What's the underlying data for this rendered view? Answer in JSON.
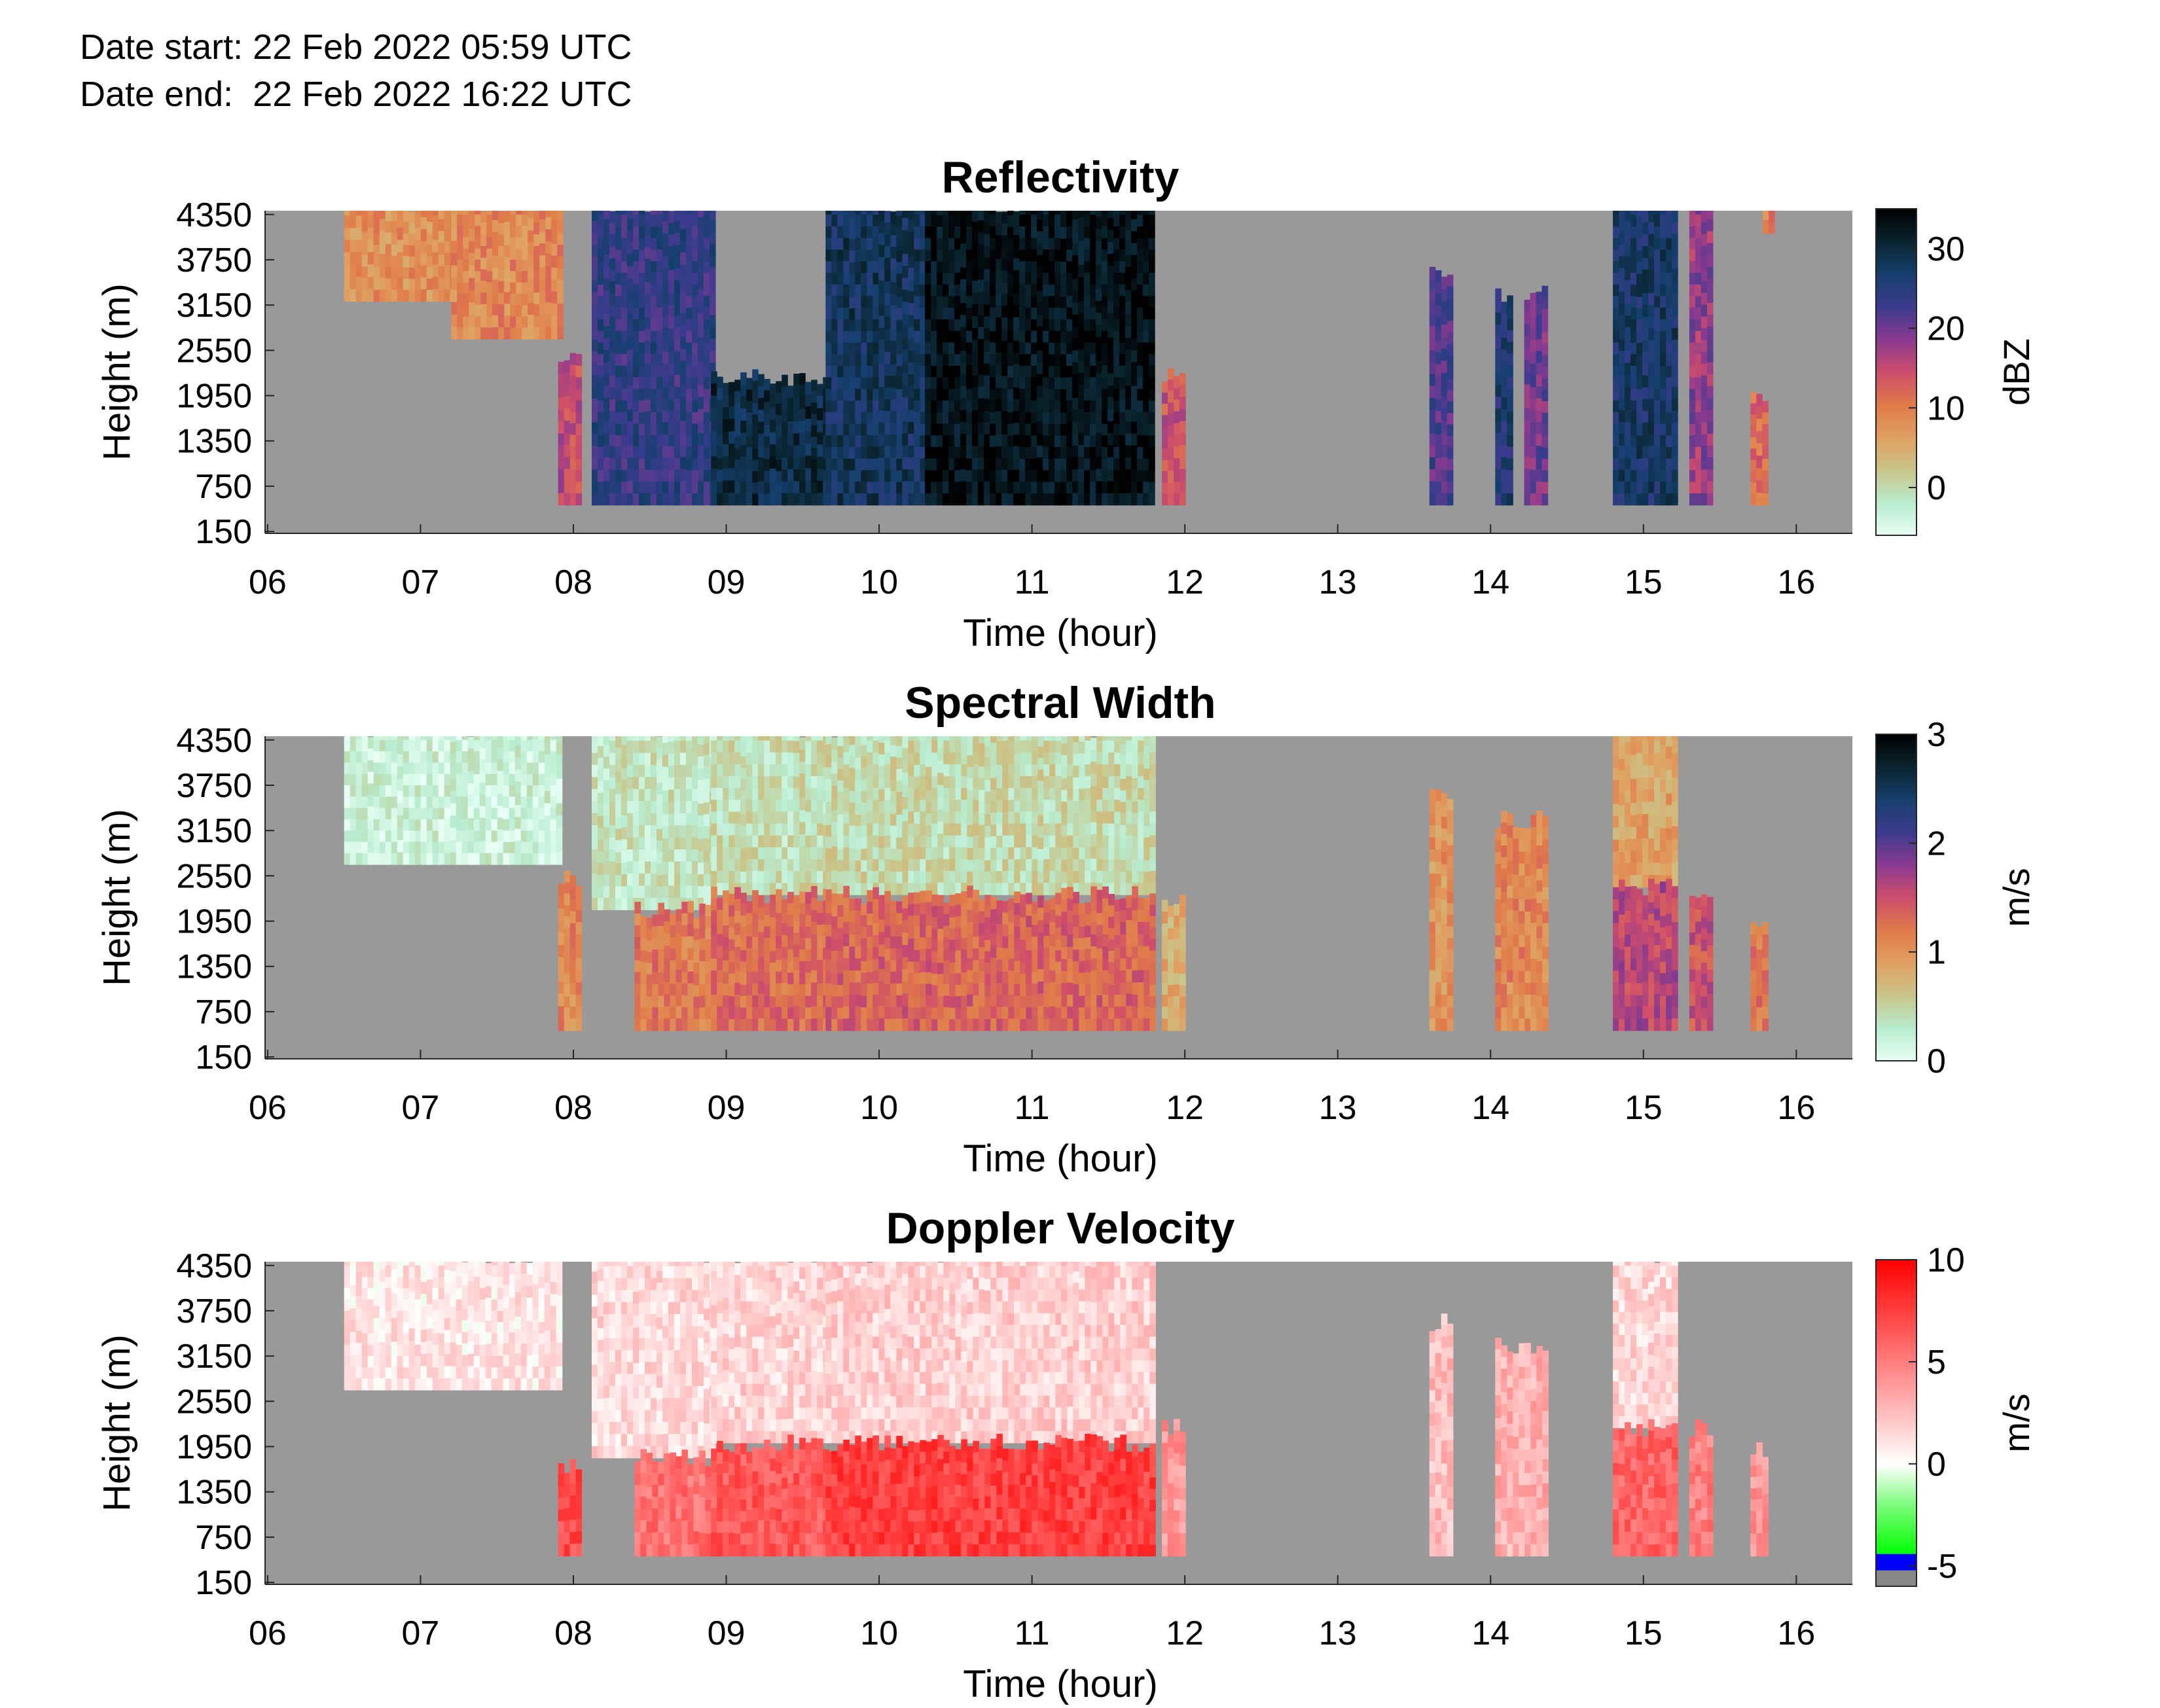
{
  "header": {
    "date_start": "Date start: 22 Feb 2022 05:59 UTC",
    "date_end": "Date end:  22 Feb 2022 16:22 UTC"
  },
  "chart_data": [
    {
      "type": "heatmap",
      "title": "Reflectivity",
      "xlabel": "Time (hour)",
      "ylabel": "Height (m)",
      "colorbar_label": "dBZ",
      "xlim": [
        5.9833,
        16.3667
      ],
      "x_ticks": [
        "06",
        "07",
        "08",
        "09",
        "10",
        "11",
        "12",
        "13",
        "14",
        "15",
        "16"
      ],
      "ylim": [
        150,
        4350
      ],
      "y_ticks": [
        "4350",
        "3750",
        "3150",
        "2550",
        "1950",
        "1350",
        "750",
        "150"
      ],
      "clim": [
        -6,
        35
      ],
      "cbar_ticks": [
        "30",
        "20",
        "10",
        "0"
      ],
      "colormap": [
        "#e8fff6",
        "#b8eccf",
        "#c9c58a",
        "#e0a060",
        "#e07a4a",
        "#cf4d6b",
        "#8a3a8f",
        "#3c3b8e",
        "#163f6e",
        "#0a2530",
        "#000000"
      ],
      "missing_color": "#999999",
      "echo_segments": [
        {
          "start": 6.5,
          "end": 7.2,
          "top": 4500,
          "bottom": 3200,
          "level": 8
        },
        {
          "start": 7.2,
          "end": 7.9,
          "top": 4500,
          "bottom": 2700,
          "level": 9
        },
        {
          "start": 7.9,
          "end": 8.05,
          "top": 2500,
          "bottom": 500,
          "level": 15
        },
        {
          "start": 8.12,
          "end": 8.9,
          "top": 4500,
          "bottom": 500,
          "level": 24
        },
        {
          "start": 8.9,
          "end": 9.65,
          "top": 2200,
          "bottom": 500,
          "level": 30
        },
        {
          "start": 9.65,
          "end": 10.3,
          "top": 4500,
          "bottom": 500,
          "level": 28
        },
        {
          "start": 10.3,
          "end": 11.8,
          "top": 4500,
          "bottom": 500,
          "level": 33
        },
        {
          "start": 11.85,
          "end": 12.0,
          "top": 2200,
          "bottom": 500,
          "level": 14
        },
        {
          "start": 13.6,
          "end": 13.72,
          "top": 3600,
          "bottom": 500,
          "level": 22
        },
        {
          "start": 14.03,
          "end": 14.12,
          "top": 3300,
          "bottom": 500,
          "level": 26
        },
        {
          "start": 14.22,
          "end": 14.35,
          "top": 3300,
          "bottom": 500,
          "level": 20
        },
        {
          "start": 14.8,
          "end": 15.22,
          "top": 4500,
          "bottom": 500,
          "level": 27
        },
        {
          "start": 15.3,
          "end": 15.45,
          "top": 4500,
          "bottom": 500,
          "level": 18
        },
        {
          "start": 15.7,
          "end": 15.8,
          "top": 1900,
          "bottom": 500,
          "level": 12
        },
        {
          "start": 15.78,
          "end": 15.83,
          "top": 4500,
          "bottom": 4100,
          "level": 10
        }
      ]
    },
    {
      "type": "heatmap",
      "title": "Spectral Width",
      "xlabel": "Time (hour)",
      "ylabel": "Height (m)",
      "colorbar_label": "m/s",
      "xlim": [
        5.9833,
        16.3667
      ],
      "x_ticks": [
        "06",
        "07",
        "08",
        "09",
        "10",
        "11",
        "12",
        "13",
        "14",
        "15",
        "16"
      ],
      "ylim": [
        150,
        4350
      ],
      "y_ticks": [
        "4350",
        "3750",
        "3150",
        "2550",
        "1950",
        "1350",
        "750",
        "150"
      ],
      "clim": [
        0,
        3
      ],
      "cbar_ticks": [
        "3",
        "2",
        "1",
        "0"
      ],
      "colormap": [
        "#e8fff6",
        "#b8eccf",
        "#c9c58a",
        "#e0a060",
        "#e07a4a",
        "#cf4d6b",
        "#8a3a8f",
        "#3c3b8e",
        "#163f6e",
        "#0a2530",
        "#000000"
      ],
      "missing_color": "#999999",
      "echo_segments": [
        {
          "start": 6.5,
          "end": 7.9,
          "top": 4500,
          "bottom": 2700,
          "level": 0.2
        },
        {
          "start": 7.9,
          "end": 8.05,
          "top": 2500,
          "bottom": 500,
          "level": 1.1
        },
        {
          "start": 8.12,
          "end": 8.9,
          "top": 4500,
          "bottom": 2100,
          "level": 0.35
        },
        {
          "start": 8.4,
          "end": 8.9,
          "top": 2100,
          "bottom": 500,
          "level": 1.2
        },
        {
          "start": 8.9,
          "end": 9.65,
          "top": 4500,
          "bottom": 2300,
          "level": 0.4
        },
        {
          "start": 8.9,
          "end": 9.65,
          "top": 2300,
          "bottom": 500,
          "level": 1.3
        },
        {
          "start": 9.65,
          "end": 11.8,
          "top": 4500,
          "bottom": 2300,
          "level": 0.45
        },
        {
          "start": 9.65,
          "end": 11.8,
          "top": 2300,
          "bottom": 500,
          "level": 1.35
        },
        {
          "start": 11.85,
          "end": 12.0,
          "top": 2200,
          "bottom": 500,
          "level": 0.8
        },
        {
          "start": 13.6,
          "end": 13.72,
          "top": 3600,
          "bottom": 500,
          "level": 1.0
        },
        {
          "start": 14.03,
          "end": 14.35,
          "top": 3300,
          "bottom": 500,
          "level": 1.1
        },
        {
          "start": 14.8,
          "end": 15.22,
          "top": 4500,
          "bottom": 2400,
          "level": 0.9
        },
        {
          "start": 14.8,
          "end": 15.22,
          "top": 2400,
          "bottom": 500,
          "level": 1.6
        },
        {
          "start": 15.3,
          "end": 15.45,
          "top": 2200,
          "bottom": 500,
          "level": 1.5
        },
        {
          "start": 15.7,
          "end": 15.8,
          "top": 1900,
          "bottom": 500,
          "level": 1.2
        }
      ]
    },
    {
      "type": "heatmap",
      "title": "Doppler Velocity",
      "xlabel": "Time (hour)",
      "ylabel": "Height (m)",
      "colorbar_label": "m/s",
      "xlim": [
        5.9833,
        16.3667
      ],
      "x_ticks": [
        "06",
        "07",
        "08",
        "09",
        "10",
        "11",
        "12",
        "13",
        "14",
        "15",
        "16"
      ],
      "ylim": [
        150,
        4350
      ],
      "y_ticks": [
        "4350",
        "3750",
        "3150",
        "2550",
        "1950",
        "1350",
        "750",
        "150"
      ],
      "clim": [
        -6,
        10
      ],
      "cbar_ticks": [
        "10",
        "5",
        "0",
        "-5"
      ],
      "colormap_stops": [
        {
          "v": -6,
          "c": "#888888"
        },
        {
          "v": -5.2,
          "c": "#888888"
        },
        {
          "v": -5.2,
          "c": "#0000ff"
        },
        {
          "v": -4.4,
          "c": "#0000ff"
        },
        {
          "v": -4.4,
          "c": "#00ff00"
        },
        {
          "v": -2.0,
          "c": "#7dfc7d"
        },
        {
          "v": 0,
          "c": "#ffffff"
        },
        {
          "v": 3,
          "c": "#ffb0b0"
        },
        {
          "v": 10,
          "c": "#ff0000"
        }
      ],
      "missing_color": "#999999",
      "echo_segments": [
        {
          "start": 6.5,
          "end": 7.9,
          "top": 4500,
          "bottom": 2700,
          "level": 1.0
        },
        {
          "start": 7.9,
          "end": 8.05,
          "top": 1700,
          "bottom": 500,
          "level": 7.0
        },
        {
          "start": 8.12,
          "end": 8.9,
          "top": 4500,
          "bottom": 1800,
          "level": 1.4
        },
        {
          "start": 8.4,
          "end": 8.9,
          "top": 1800,
          "bottom": 500,
          "level": 5.5
        },
        {
          "start": 8.9,
          "end": 9.65,
          "top": 4500,
          "bottom": 2000,
          "level": 1.6
        },
        {
          "start": 8.9,
          "end": 9.65,
          "top": 2000,
          "bottom": 500,
          "level": 6.5
        },
        {
          "start": 9.65,
          "end": 11.8,
          "top": 4500,
          "bottom": 2000,
          "level": 1.8
        },
        {
          "start": 9.65,
          "end": 11.8,
          "top": 2000,
          "bottom": 500,
          "level": 7.5
        },
        {
          "start": 11.85,
          "end": 12.0,
          "top": 2200,
          "bottom": 500,
          "level": 4.0
        },
        {
          "start": 13.6,
          "end": 13.72,
          "top": 3600,
          "bottom": 500,
          "level": 2.5
        },
        {
          "start": 14.03,
          "end": 14.35,
          "top": 3300,
          "bottom": 500,
          "level": 3.0
        },
        {
          "start": 14.8,
          "end": 15.22,
          "top": 4500,
          "bottom": 2200,
          "level": 1.6
        },
        {
          "start": 14.8,
          "end": 15.22,
          "top": 2200,
          "bottom": 500,
          "level": 6.0
        },
        {
          "start": 15.3,
          "end": 15.45,
          "top": 2200,
          "bottom": 500,
          "level": 5.0
        },
        {
          "start": 15.7,
          "end": 15.8,
          "top": 1900,
          "bottom": 500,
          "level": 4.0
        }
      ]
    }
  ]
}
